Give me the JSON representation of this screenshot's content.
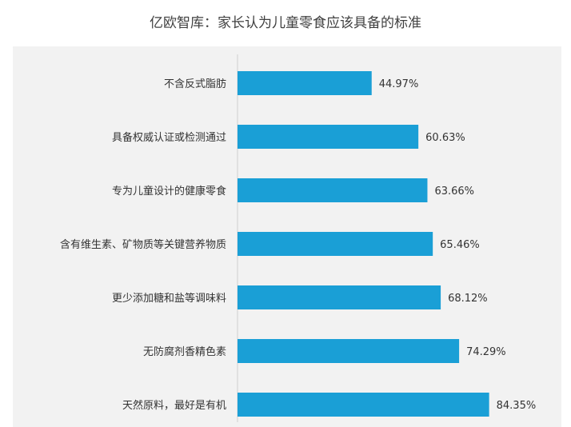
{
  "chart_data": {
    "type": "bar",
    "orientation": "horizontal",
    "title": "亿欧智库：家长认为儿童零食应该具备的标准",
    "xlabel": "",
    "ylabel": "",
    "categories": [
      "不含反式脂肪",
      "具备权威认证或检测通过",
      "专为儿童设计的健康零食",
      "含有维生素、矿物质等关键营养物质",
      "更少添加糖和盐等调味料",
      "无防腐剂香精色素",
      "天然原料，最好是有机"
    ],
    "values": [
      44.97,
      60.63,
      63.66,
      65.46,
      68.12,
      74.29,
      84.35
    ],
    "value_labels": [
      "44.97%",
      "60.63%",
      "63.66%",
      "65.46%",
      "68.12%",
      "74.29%",
      "84.35%"
    ],
    "xlim": [
      0,
      100
    ],
    "grid": false,
    "legend": "none",
    "bar_color": "#1a9fd6",
    "background": "#f2f2f2"
  }
}
